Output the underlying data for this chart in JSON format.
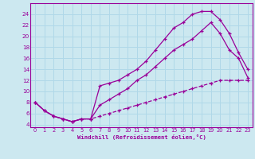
{
  "xlabel": "Windchill (Refroidissement éolien,°C)",
  "bg_color": "#cce8f0",
  "grid_color": "#b0d8e8",
  "line_color": "#990099",
  "xlim": [
    -0.5,
    23.5
  ],
  "ylim": [
    3.5,
    26
  ],
  "xticks": [
    0,
    1,
    2,
    3,
    4,
    5,
    6,
    7,
    8,
    9,
    10,
    11,
    12,
    13,
    14,
    15,
    16,
    17,
    18,
    19,
    20,
    21,
    22,
    23
  ],
  "yticks": [
    4,
    6,
    8,
    10,
    12,
    14,
    16,
    18,
    20,
    22,
    24
  ],
  "series1_x": [
    0,
    1,
    2,
    3,
    4,
    5,
    6,
    7,
    8,
    9,
    10,
    11,
    12,
    13,
    14,
    15,
    16,
    17,
    18,
    19,
    20,
    21,
    22,
    23
  ],
  "series1_y": [
    8,
    6.5,
    5.5,
    5,
    4.5,
    5,
    5,
    11,
    11.5,
    12,
    13,
    14,
    15.5,
    17.5,
    19.5,
    21.5,
    22.5,
    24,
    24.5,
    24.5,
    23,
    20.5,
    17,
    14
  ],
  "series2_x": [
    0,
    1,
    2,
    3,
    4,
    5,
    6,
    7,
    8,
    9,
    10,
    11,
    12,
    13,
    14,
    15,
    16,
    17,
    18,
    19,
    20,
    21,
    22,
    23
  ],
  "series2_y": [
    8,
    6.5,
    5.5,
    5,
    4.5,
    5,
    5,
    7.5,
    8.5,
    9.5,
    10.5,
    12,
    13,
    14.5,
    16,
    17.5,
    18.5,
    19.5,
    21,
    22.5,
    20.5,
    17.5,
    16,
    12.5
  ],
  "series3_x": [
    0,
    1,
    2,
    3,
    4,
    5,
    6,
    7,
    8,
    9,
    10,
    11,
    12,
    13,
    14,
    15,
    16,
    17,
    18,
    19,
    20,
    21,
    22,
    23
  ],
  "series3_y": [
    8,
    6.5,
    5.5,
    5,
    4.5,
    5,
    5,
    5.5,
    6,
    6.5,
    7,
    7.5,
    8,
    8.5,
    9,
    9.5,
    10,
    10.5,
    11,
    11.5,
    12,
    12,
    12,
    12
  ]
}
